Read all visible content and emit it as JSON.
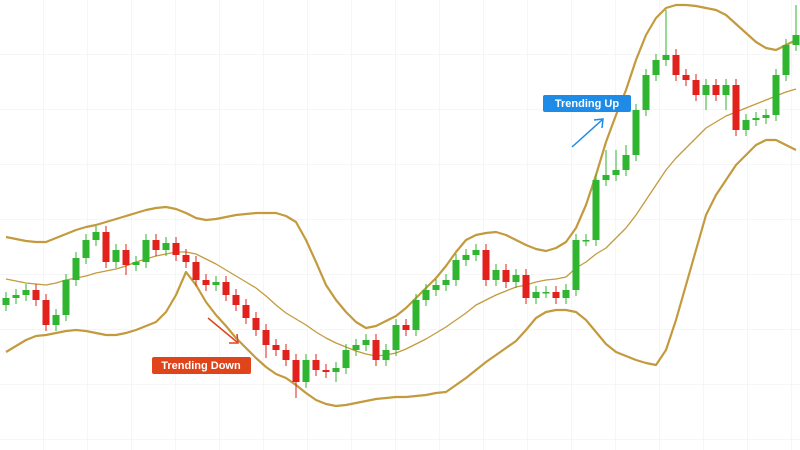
{
  "chart_data": {
    "type": "candlestick",
    "ylim": [
      0,
      450
    ],
    "up_color": "#2fb52f",
    "down_color": "#e2211c",
    "open": [
      145,
      152,
      155,
      160,
      150,
      125,
      135,
      170,
      192,
      210,
      218,
      188,
      200,
      185,
      188,
      210,
      200,
      207,
      195,
      188,
      170,
      165,
      168,
      155,
      145,
      132,
      120,
      105,
      100,
      90,
      68,
      90,
      80,
      78,
      82,
      100,
      105,
      110,
      90,
      100,
      125,
      120,
      150,
      160,
      165,
      170,
      190,
      195,
      200,
      170,
      180,
      168,
      175,
      152,
      158,
      158,
      152,
      160,
      210,
      210,
      270,
      275,
      280,
      295,
      340,
      375,
      390,
      395,
      375,
      370,
      355,
      365,
      355,
      365,
      320,
      330,
      332,
      335,
      375,
      405
    ],
    "high": [
      158,
      161,
      166,
      166,
      156,
      141,
      176,
      198,
      216,
      224,
      224,
      206,
      206,
      194,
      216,
      216,
      213,
      213,
      201,
      194,
      176,
      174,
      174,
      161,
      151,
      138,
      126,
      111,
      106,
      96,
      96,
      96,
      86,
      88,
      106,
      111,
      116,
      116,
      106,
      131,
      131,
      156,
      166,
      171,
      176,
      196,
      201,
      206,
      206,
      186,
      186,
      181,
      181,
      164,
      164,
      164,
      166,
      216,
      216,
      276,
      300,
      300,
      305,
      346,
      381,
      396,
      440,
      401,
      381,
      376,
      371,
      371,
      371,
      371,
      336,
      338,
      341,
      381,
      411,
      445
    ],
    "low": [
      139,
      146,
      149,
      144,
      119,
      119,
      129,
      164,
      186,
      204,
      182,
      182,
      175,
      179,
      182,
      194,
      194,
      189,
      182,
      164,
      159,
      159,
      149,
      139,
      126,
      114,
      92,
      94,
      84,
      52,
      62,
      74,
      72,
      68,
      76,
      94,
      99,
      84,
      84,
      94,
      114,
      114,
      144,
      154,
      159,
      164,
      184,
      189,
      164,
      164,
      162,
      162,
      146,
      146,
      152,
      146,
      146,
      154,
      204,
      204,
      264,
      269,
      274,
      289,
      334,
      369,
      384,
      369,
      364,
      349,
      340,
      349,
      340,
      314,
      314,
      324,
      326,
      329,
      369,
      399
    ],
    "close": [
      152,
      155,
      160,
      150,
      125,
      135,
      170,
      192,
      210,
      218,
      188,
      200,
      185,
      188,
      210,
      200,
      207,
      195,
      188,
      170,
      165,
      168,
      155,
      145,
      132,
      120,
      105,
      100,
      90,
      68,
      90,
      80,
      78,
      82,
      100,
      105,
      110,
      90,
      100,
      125,
      120,
      150,
      160,
      165,
      170,
      190,
      195,
      200,
      170,
      180,
      168,
      175,
      152,
      158,
      158,
      152,
      160,
      210,
      210,
      270,
      275,
      280,
      295,
      340,
      375,
      390,
      395,
      375,
      370,
      355,
      365,
      355,
      365,
      320,
      330,
      332,
      335,
      375,
      405,
      415
    ],
    "bands": {
      "color": "#c39a3e",
      "upper": [
        213,
        211,
        209,
        208,
        208,
        212,
        216,
        220,
        223,
        225,
        228,
        231,
        234,
        237,
        240,
        242,
        243,
        241,
        237,
        232,
        230,
        231,
        233,
        235,
        236,
        237,
        237,
        237,
        234,
        228,
        210,
        188,
        165,
        150,
        138,
        128,
        122,
        124,
        129,
        134,
        142,
        152,
        162,
        172,
        184,
        198,
        210,
        215,
        217,
        218,
        215,
        210,
        205,
        201,
        199,
        202,
        208,
        222,
        245,
        275,
        308,
        335,
        360,
        390,
        415,
        432,
        442,
        445,
        445,
        444,
        442,
        440,
        435,
        426,
        417,
        408,
        402,
        400,
        405,
        410
      ],
      "middle": [
        171,
        169,
        167,
        166,
        165,
        167,
        170,
        172,
        174,
        177,
        179,
        181,
        184,
        188,
        191,
        194,
        196,
        198,
        198,
        196,
        191,
        186,
        180,
        174,
        168,
        162,
        154,
        145,
        137,
        131,
        125,
        118,
        112,
        107,
        103,
        99,
        96,
        94,
        95,
        97,
        101,
        106,
        111,
        117,
        123,
        130,
        137,
        145,
        150,
        155,
        159,
        163,
        165,
        168,
        170,
        171,
        173,
        182,
        188,
        196,
        202,
        212,
        222,
        235,
        250,
        265,
        280,
        292,
        302,
        312,
        322,
        328,
        334,
        338,
        342,
        346,
        350,
        354,
        358,
        361
      ],
      "lower": [
        98,
        104,
        110,
        114,
        115,
        117,
        119,
        120,
        119,
        117,
        115,
        115,
        117,
        120,
        124,
        128,
        138,
        155,
        178,
        165,
        148,
        135,
        124,
        112,
        102,
        92,
        83,
        76,
        72,
        65,
        57,
        50,
        46,
        44,
        45,
        47,
        49,
        51,
        52,
        53,
        53,
        54,
        55,
        57,
        58,
        65,
        72,
        80,
        88,
        95,
        102,
        109,
        120,
        132,
        138,
        140,
        140,
        138,
        130,
        118,
        106,
        98,
        94,
        90,
        87,
        85,
        100,
        130,
        165,
        200,
        235,
        255,
        270,
        285,
        295,
        305,
        310,
        310,
        305,
        300
      ]
    },
    "annotations": [
      {
        "text": "Trending Up",
        "color": "#1e8be6"
      },
      {
        "text": "Trending Down",
        "color": "#e0441b"
      }
    ]
  }
}
